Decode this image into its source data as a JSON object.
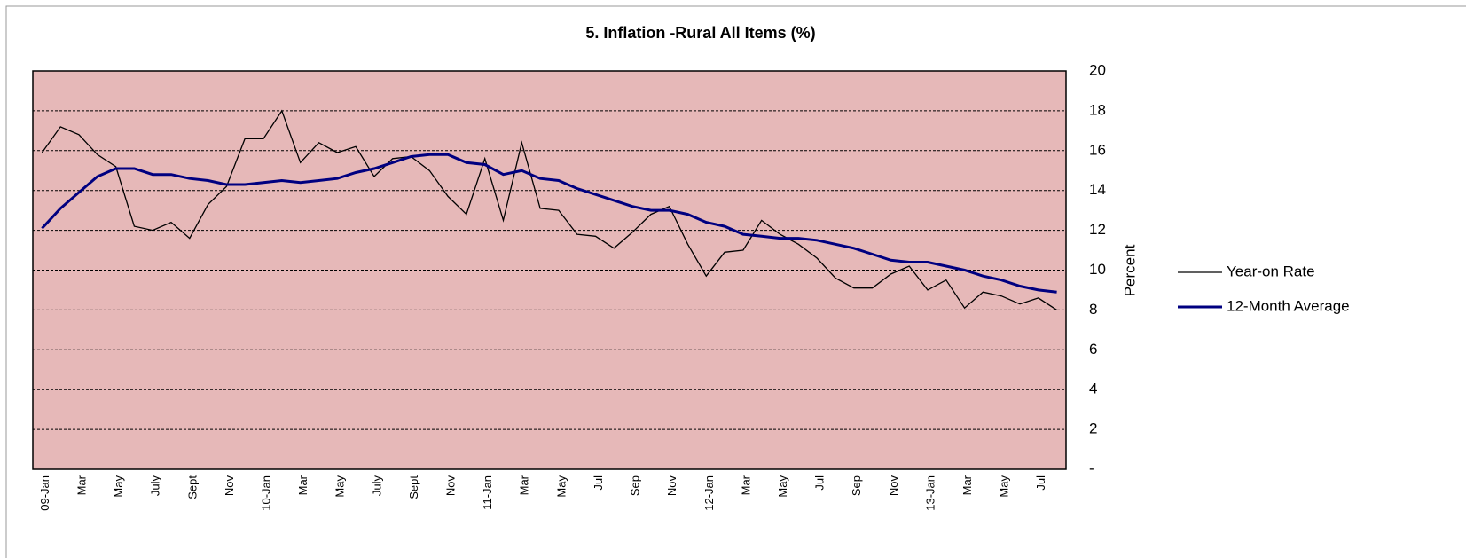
{
  "chart_data": {
    "type": "line",
    "title": "5. Inflation -Rural All Items (%)",
    "y_label": "Percent",
    "categories": [
      "09-Jan",
      null,
      "Mar",
      null,
      "May",
      null,
      "July",
      null,
      "Sept",
      null,
      "Nov",
      null,
      "10-Jan",
      null,
      "Mar",
      null,
      "May",
      null,
      "July",
      null,
      "Sept",
      null,
      "Nov",
      null,
      "11-Jan",
      null,
      "Mar",
      null,
      "May",
      null,
      "Jul",
      null,
      "Sep",
      null,
      "Nov",
      null,
      "12-Jan",
      null,
      "Mar",
      null,
      "May",
      null,
      "Jul",
      null,
      "Sep",
      null,
      "Nov",
      null,
      "13-Jan",
      null,
      "Mar",
      null,
      "May",
      null,
      "Jul",
      null
    ],
    "series": [
      {
        "name": "Year-on Rate",
        "color": "#000000",
        "values": [
          15.9,
          17.2,
          16.8,
          15.8,
          15.2,
          12.2,
          12.0,
          12.4,
          11.6,
          13.3,
          14.2,
          16.6,
          16.6,
          18.0,
          15.4,
          16.4,
          15.9,
          16.2,
          14.7,
          15.6,
          15.7,
          15.0,
          13.7,
          12.8,
          15.6,
          12.5,
          16.4,
          13.1,
          13.0,
          11.8,
          11.7,
          11.1,
          11.9,
          12.8,
          13.2,
          11.3,
          9.7,
          10.9,
          11.0,
          12.5,
          11.8,
          11.3,
          10.6,
          9.6,
          9.1,
          9.1,
          9.8,
          10.2,
          9.0,
          9.5,
          8.1,
          8.9,
          8.7,
          8.3,
          8.6,
          8.0
        ]
      },
      {
        "name": "12-Month Average",
        "color": "#000080",
        "values": [
          12.1,
          13.1,
          13.9,
          14.7,
          15.1,
          15.1,
          14.8,
          14.8,
          14.6,
          14.5,
          14.3,
          14.3,
          14.4,
          14.5,
          14.4,
          14.5,
          14.6,
          14.9,
          15.1,
          15.4,
          15.7,
          15.8,
          15.8,
          15.4,
          15.3,
          14.8,
          15.0,
          14.6,
          14.5,
          14.1,
          13.8,
          13.5,
          13.2,
          13.0,
          13.0,
          12.8,
          12.4,
          12.2,
          11.8,
          11.7,
          11.6,
          11.6,
          11.5,
          11.3,
          11.1,
          10.8,
          10.5,
          10.4,
          10.4,
          10.2,
          10.0,
          9.7,
          9.5,
          9.2,
          9.0,
          8.9
        ]
      }
    ],
    "ylim": [
      0,
      20
    ],
    "yticks": [
      {
        "value": 0,
        "label": "-"
      },
      2,
      4,
      6,
      8,
      10,
      12,
      14,
      16,
      18,
      20
    ],
    "grid": true,
    "plot_color": "#e6b8b8",
    "legend": "right"
  }
}
